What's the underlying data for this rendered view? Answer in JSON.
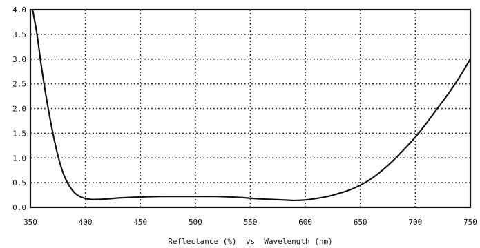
{
  "chart_data": {
    "type": "line",
    "xlabel": "Reflectance (%)  vs  Wavelength (nm)",
    "ylabel": "",
    "xlim": [
      350,
      750
    ],
    "ylim": [
      0,
      4.0
    ],
    "x_ticks": [
      350,
      400,
      450,
      500,
      550,
      600,
      650,
      700,
      750
    ],
    "y_ticks": [
      0.0,
      0.5,
      1.0,
      1.5,
      2.0,
      2.5,
      3.0,
      3.5,
      4.0
    ],
    "x_tick_labels": [
      "350",
      "400",
      "450",
      "500",
      "550",
      "600",
      "650",
      "700",
      "750"
    ],
    "y_tick_labels": [
      "0.0",
      "0.5",
      "1.0",
      "1.5",
      "2.0",
      "2.5",
      "3.0",
      "3.5",
      "4.0"
    ],
    "grid": true,
    "grid_style": "dotted",
    "colors": {
      "line": "#111111",
      "frame": "#111111",
      "grid": "#333333",
      "background": "#ffffff"
    },
    "series": [
      {
        "x": [
          352,
          356,
          360,
          365,
          370,
          375,
          380,
          385,
          390,
          395,
          400,
          405,
          410,
          420,
          430,
          440,
          450,
          470,
          500,
          520,
          540,
          560,
          580,
          590,
          600,
          610,
          620,
          630,
          640,
          650,
          660,
          670,
          680,
          690,
          700,
          710,
          720,
          730,
          740,
          750
        ],
        "y": [
          4.0,
          3.5,
          2.85,
          2.15,
          1.55,
          1.05,
          0.68,
          0.45,
          0.3,
          0.22,
          0.18,
          0.16,
          0.16,
          0.17,
          0.19,
          0.2,
          0.21,
          0.22,
          0.22,
          0.22,
          0.2,
          0.17,
          0.15,
          0.14,
          0.15,
          0.18,
          0.22,
          0.28,
          0.35,
          0.45,
          0.58,
          0.75,
          0.95,
          1.18,
          1.42,
          1.7,
          2.0,
          2.3,
          2.63,
          3.0
        ]
      }
    ]
  }
}
